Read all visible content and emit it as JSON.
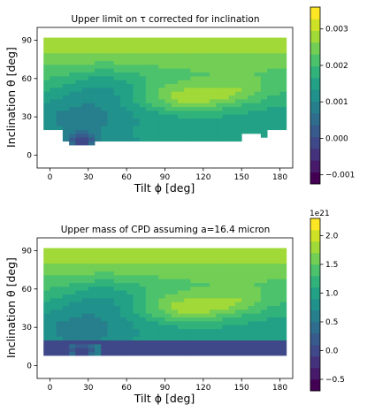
{
  "chart_data": [
    {
      "type": "heatmap",
      "title": "Upper limit on τ corrected for inclination",
      "xlabel": "Tilt ϕ [deg]",
      "ylabel": "Inclination θ [deg]",
      "xlim": [
        -10,
        190
      ],
      "ylim": [
        -10,
        100
      ],
      "xticks": [
        0,
        30,
        60,
        90,
        120,
        150,
        180
      ],
      "yticks": [
        0,
        30,
        60,
        90
      ],
      "colorbar": {
        "min": -0.00125,
        "max": 0.0036,
        "ticks": [
          -0.001,
          0.0,
          0.001,
          0.002,
          0.003
        ],
        "tick_labels": [
          "−0.001",
          "0.000",
          "0.001",
          "0.002",
          "0.003"
        ],
        "exponent_label": "",
        "levels": 15,
        "colormap": "viridis"
      },
      "bottom_fill": "cutout"
    },
    {
      "type": "heatmap",
      "title": "Upper mass of CPD assuming a=16.4 micron",
      "xlabel": "Tilt ϕ [deg]",
      "ylabel": "Inclination θ [deg]",
      "xlim": [
        -10,
        190
      ],
      "ylim": [
        -10,
        100
      ],
      "xticks": [
        0,
        30,
        60,
        90,
        120,
        150,
        180
      ],
      "yticks": [
        0,
        30,
        60,
        90
      ],
      "colorbar": {
        "min": -0.7,
        "max": 2.3,
        "ticks": [
          -0.5,
          0.0,
          0.5,
          1.0,
          1.5,
          2.0
        ],
        "tick_labels": [
          "−0.5",
          "0.0",
          "0.5",
          "1.0",
          "1.5",
          "2.0"
        ],
        "exponent_label": "1e21",
        "levels": 15,
        "colormap": "viridis"
      },
      "bottom_fill": "band"
    }
  ]
}
